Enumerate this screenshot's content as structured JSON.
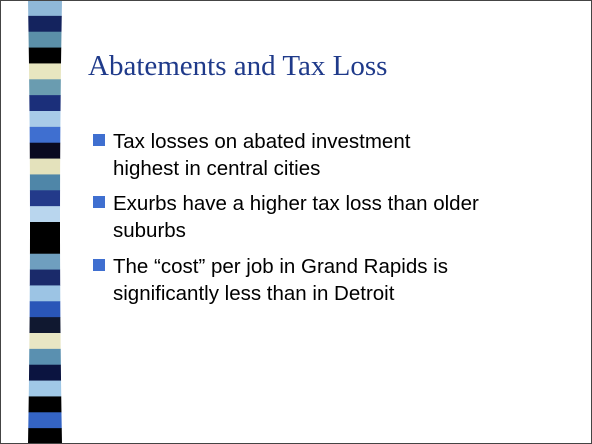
{
  "slide": {
    "title": "Abatements and Tax Loss",
    "bullets": [
      [
        "Tax losses on abated investment",
        "highest in central cities"
      ],
      [
        "Exurbs have a higher tax loss than older",
        "suburbs"
      ],
      [
        "The “cost” per job in Grand Rapids is",
        "significantly less than in Detroit"
      ]
    ]
  }
}
